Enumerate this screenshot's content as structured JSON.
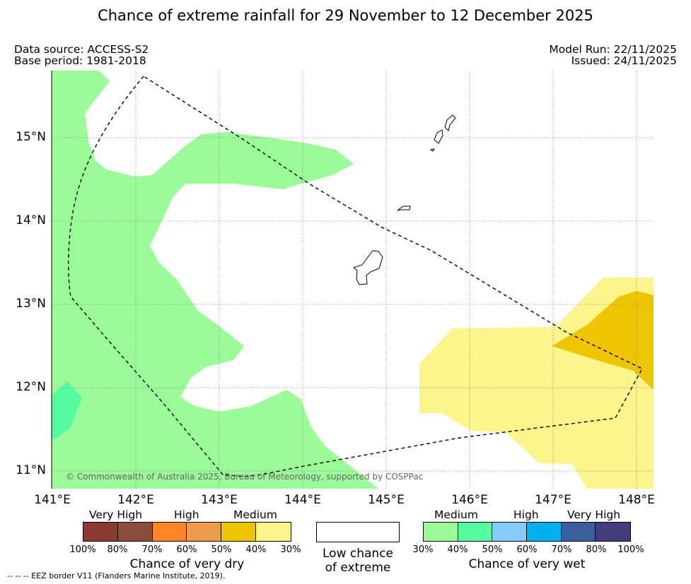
{
  "title": "Chance of extreme rainfall for 29 November to 12 December 2025",
  "meta": {
    "data_source": "Data source: ACCESS-S2",
    "base_period": "Base period: 1981-2018",
    "model_run": "Model Run: 22/11/2025",
    "issued": "Issued: 24/11/2025"
  },
  "map": {
    "lat_labels": [
      "15°N",
      "14°N",
      "13°N",
      "12°N",
      "11°N"
    ],
    "lon_labels": [
      "141°E",
      "142°E",
      "143°E",
      "144°E",
      "145°E",
      "146°E",
      "147°E",
      "148°E"
    ],
    "copyright": "© Commonwealth of Australia 2025, Bureau of Meteorology, supported by COSPPac",
    "colors": {
      "wet_medium": "#9afb98",
      "wet_high_patch": "#56fba0",
      "dry_medium": "#fbf58c",
      "dry_high": "#edc500"
    }
  },
  "legend": {
    "dry": {
      "categories": [
        "Very High",
        "High",
        "Medium"
      ],
      "ticks": [
        "100%",
        "80%",
        "70%",
        "60%",
        "50%",
        "40%",
        "30%"
      ],
      "colors": [
        "#8b3a33",
        "#8e4c3b",
        "#ff8527",
        "#ee9c4b",
        "#edc500",
        "#fbf58c"
      ],
      "caption": "Chance of very dry"
    },
    "low": {
      "caption": "Low chance of extreme"
    },
    "wet": {
      "categories": [
        "Medium",
        "High",
        "Very High"
      ],
      "ticks": [
        "30%",
        "40%",
        "50%",
        "60%",
        "70%",
        "80%",
        "100%"
      ],
      "colors": [
        "#9afb98",
        "#56fba0",
        "#85cbfb",
        "#00b0ef",
        "#3b5f9c",
        "#423c7a"
      ],
      "caption": "Chance of very wet"
    }
  },
  "footer": "--  --  -- EEZ border V11 (Flanders Marine Institute, 2019)."
}
